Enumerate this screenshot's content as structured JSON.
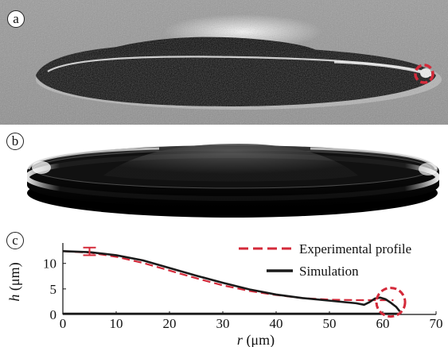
{
  "panels": {
    "a": {
      "label": "a"
    },
    "b": {
      "label": "b"
    },
    "c": {
      "label": "c"
    }
  },
  "colors": {
    "experimental": "#d42a3a",
    "simulation": "#1a1a1a",
    "marker": "#d42a3a"
  },
  "chart_data": {
    "type": "line",
    "title": "",
    "xlabel_var": "r",
    "xlabel_unit": " (μm)",
    "ylabel_var": "h",
    "ylabel_unit": " (μm)",
    "xlim": [
      0,
      70
    ],
    "ylim": [
      0,
      14
    ],
    "xticks": [
      "0",
      "10",
      "20",
      "30",
      "40",
      "50",
      "60",
      "70"
    ],
    "yticks": [
      "0",
      "5",
      "10"
    ],
    "legend_position": "top-right",
    "series": [
      {
        "name": "Experimental profile",
        "style": "dashed",
        "x": [
          0,
          5,
          10,
          15,
          20,
          25,
          30,
          35,
          40,
          45,
          50,
          55,
          58,
          60,
          62
        ],
        "y": [
          12.4,
          12.1,
          11.3,
          10.1,
          8.6,
          7.1,
          5.7,
          4.6,
          3.8,
          3.2,
          2.9,
          2.8,
          2.8,
          2.8,
          2.8
        ]
      },
      {
        "name": "Simulation",
        "style": "solid",
        "x": [
          0,
          5,
          10,
          15,
          20,
          25,
          30,
          35,
          40,
          45,
          50,
          55,
          56.5,
          57.5,
          58.5,
          59.5,
          60.5,
          61.5,
          62.5,
          63.2
        ],
        "y": [
          12.4,
          12.2,
          11.6,
          10.6,
          9.1,
          7.6,
          6.2,
          4.9,
          3.9,
          3.2,
          2.7,
          2.2,
          1.9,
          2.4,
          3.1,
          3.3,
          3.0,
          2.3,
          1.5,
          0.6
        ]
      }
    ],
    "error_bar": {
      "x": 5,
      "y": 12.3,
      "low": 11.6,
      "high": 13.1
    },
    "circle_marker": {
      "x": 61.5,
      "y": 2.4
    }
  }
}
